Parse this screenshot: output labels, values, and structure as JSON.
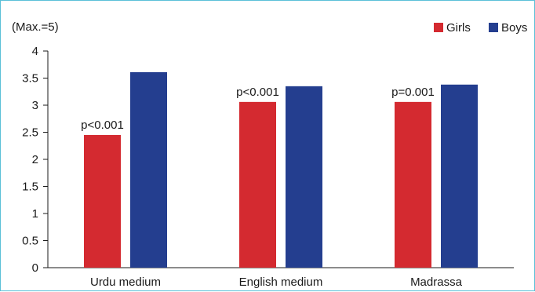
{
  "chart_data": {
    "type": "bar",
    "title": "",
    "ylabel": "(Max.=5)",
    "xlabel": "",
    "categories": [
      "Urdu medium",
      "English medium",
      "Madrassa"
    ],
    "series": [
      {
        "name": "Girls",
        "color": "#d42a30",
        "values": [
          2.45,
          3.06,
          3.06
        ]
      },
      {
        "name": "Boys",
        "color": "#243e8f",
        "values": [
          3.61,
          3.35,
          3.38
        ]
      }
    ],
    "annotations": [
      "p<0.001",
      "p<0.001",
      "p=0.001"
    ],
    "ylim": [
      0,
      4
    ],
    "yticks": [
      "0",
      "0.5",
      "1",
      "1.5",
      "2",
      "2.5",
      "3",
      "3.5",
      "4"
    ],
    "grid": false,
    "legend_position": "top-right"
  }
}
